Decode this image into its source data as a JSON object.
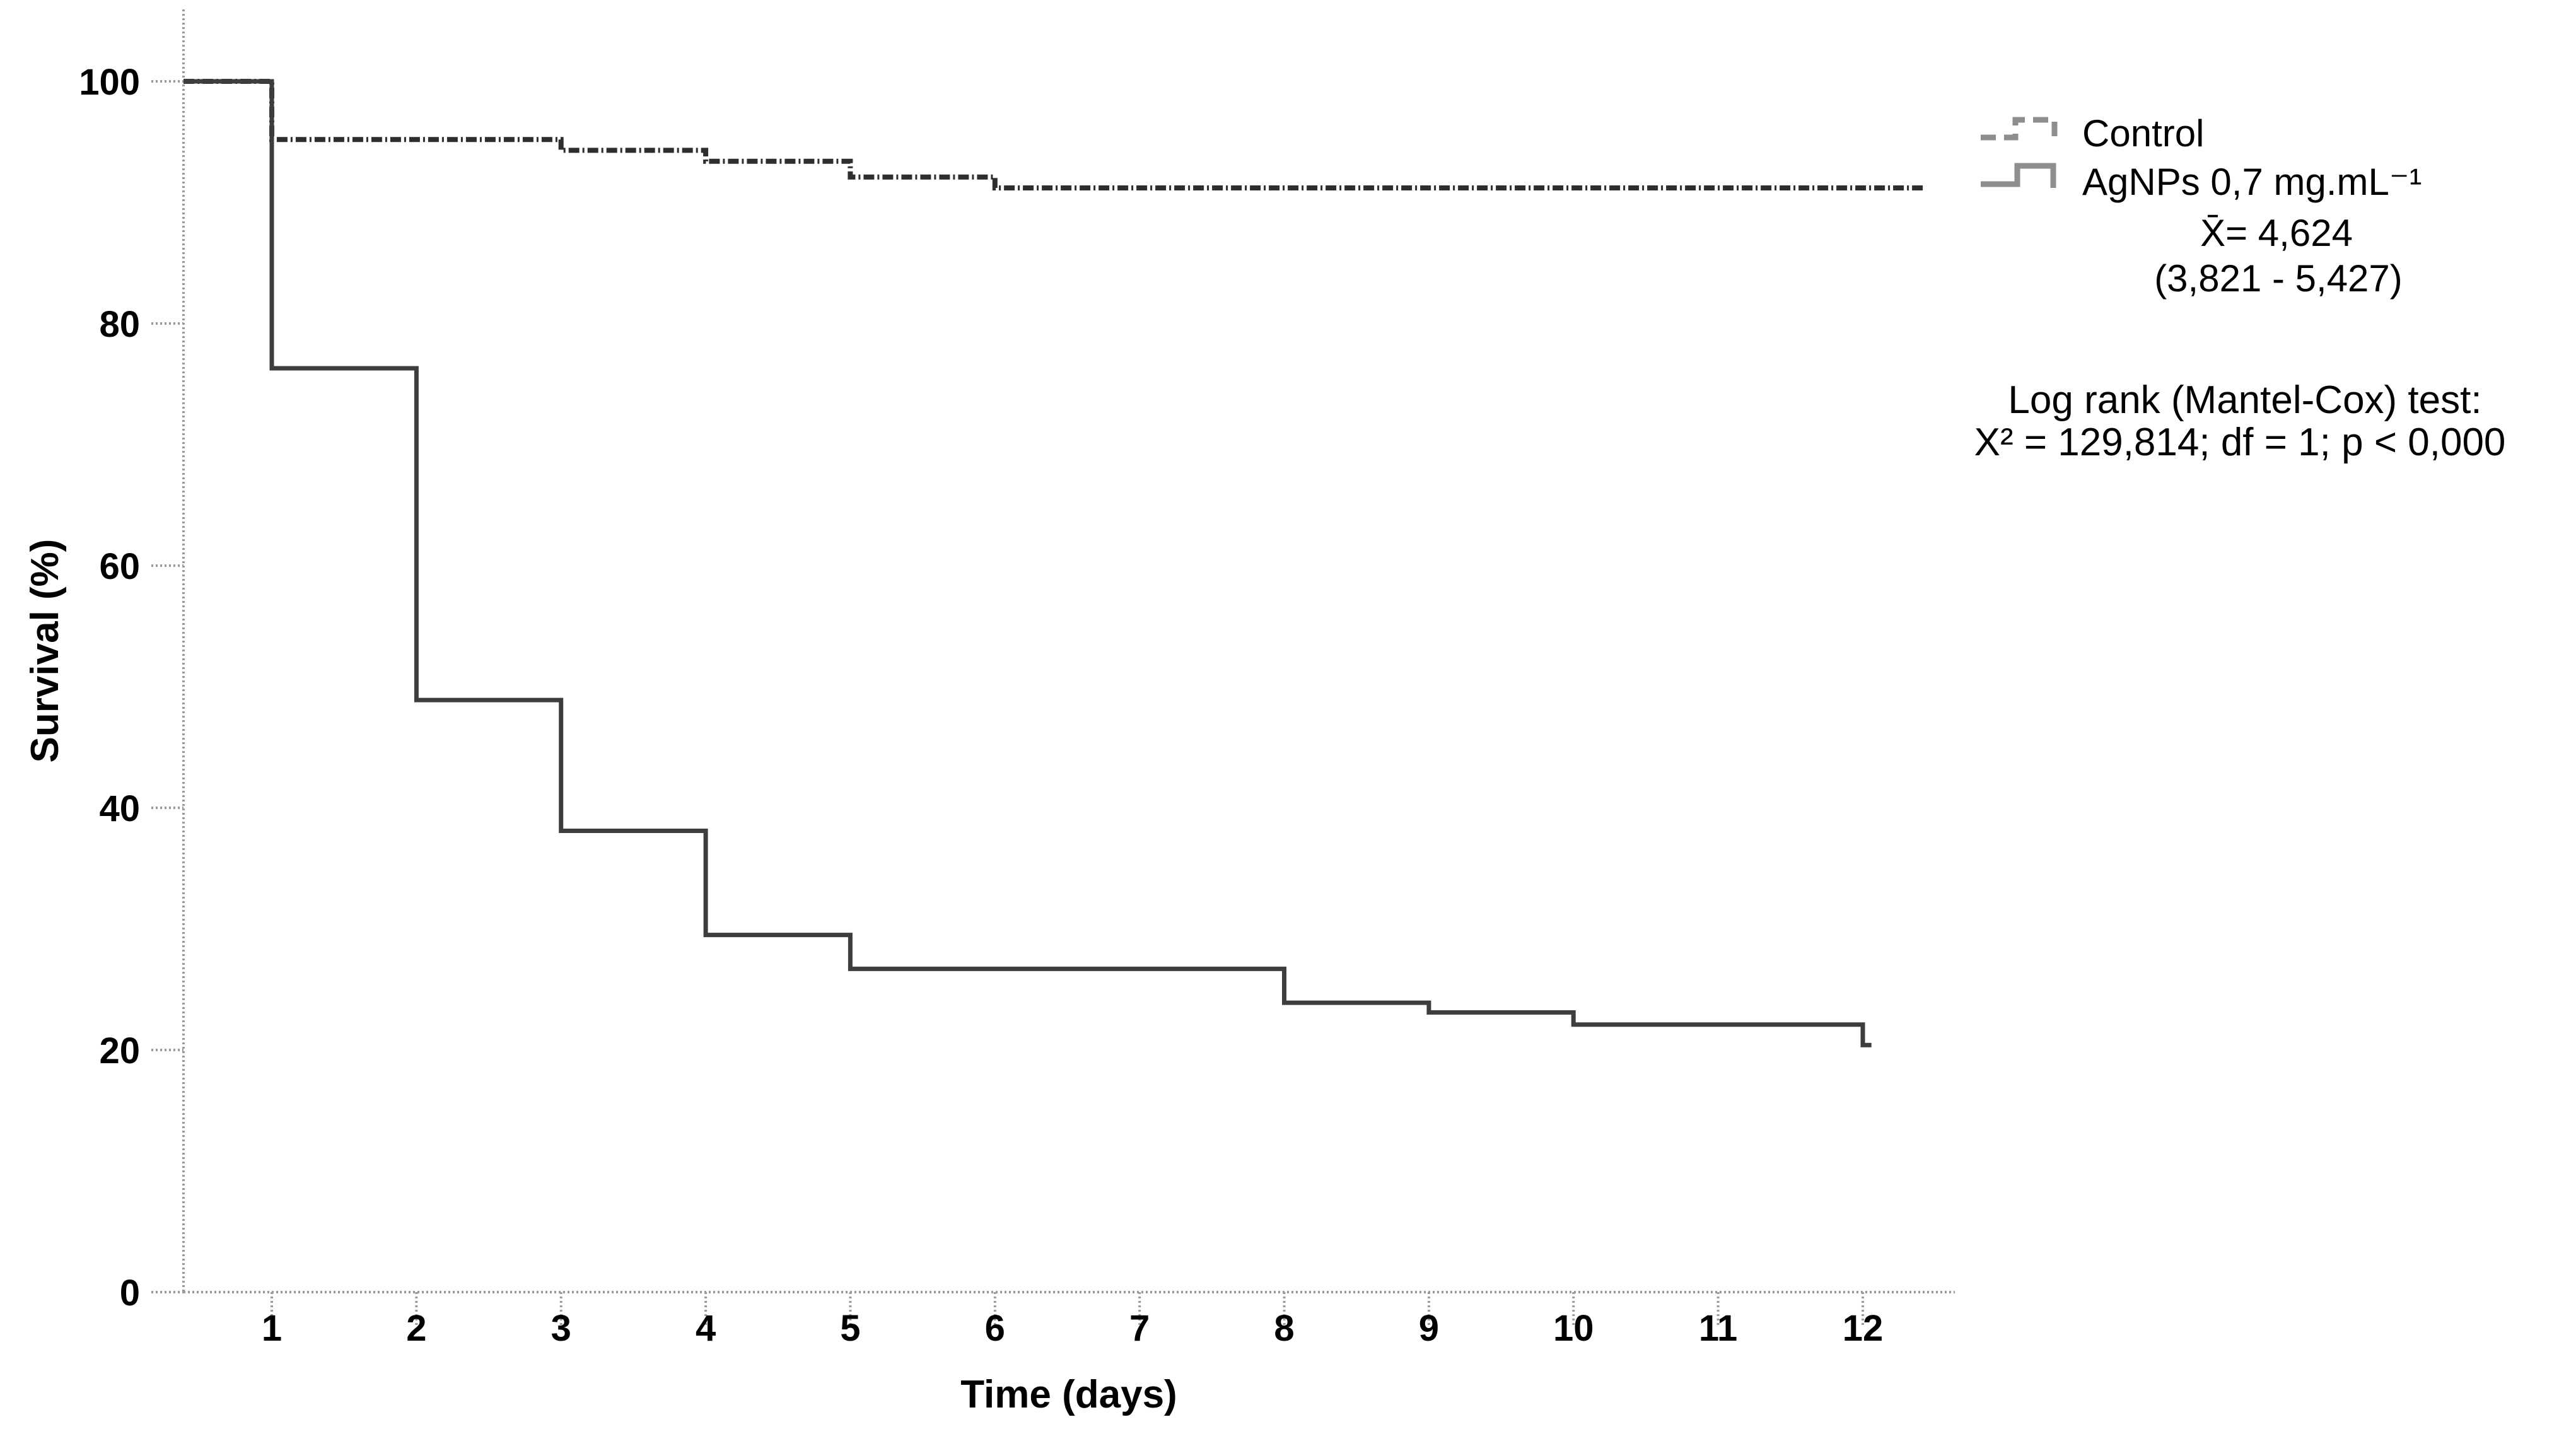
{
  "chart_data": {
    "type": "line",
    "subtype": "kaplan-meier-step",
    "title": "",
    "xlabel": "Time (days)",
    "ylabel": "Survival (%)",
    "xlim": [
      0.39,
      12.6
    ],
    "ylim": [
      0,
      100
    ],
    "x_ticks": [
      1,
      2,
      3,
      4,
      5,
      6,
      7,
      8,
      9,
      10,
      11,
      12
    ],
    "y_ticks": [
      0,
      20,
      40,
      60,
      80,
      100
    ],
    "grid": false,
    "legend_position": "top-right",
    "series": [
      {
        "name": "Control",
        "style": "dashed",
        "color": "#2e2e2e",
        "points": [
          [
            0.39,
            100
          ],
          [
            1,
            100
          ],
          [
            1,
            95.2
          ],
          [
            3,
            95.2
          ],
          [
            3,
            94.3
          ],
          [
            4,
            94.3
          ],
          [
            4,
            93.4
          ],
          [
            5,
            93.4
          ],
          [
            5,
            92.1
          ],
          [
            6,
            92.1
          ],
          [
            6,
            91.2
          ],
          [
            12.42,
            91.2
          ]
        ]
      },
      {
        "name": "AgNPs 0,7 mg.mL⁻¹",
        "style": "solid",
        "color": "#3d3d3d",
        "points": [
          [
            0.39,
            100
          ],
          [
            1,
            100
          ],
          [
            1,
            76.3
          ],
          [
            2,
            76.3
          ],
          [
            2,
            48.9
          ],
          [
            3,
            48.9
          ],
          [
            3,
            38.1
          ],
          [
            4,
            38.1
          ],
          [
            4,
            29.5
          ],
          [
            5,
            29.5
          ],
          [
            5,
            26.7
          ],
          [
            8,
            26.7
          ],
          [
            8,
            23.9
          ],
          [
            9,
            23.9
          ],
          [
            9,
            23.1
          ],
          [
            10,
            23.1
          ],
          [
            10,
            22.1
          ],
          [
            12,
            22.1
          ],
          [
            12,
            20.4
          ],
          [
            12.06,
            20.4
          ]
        ]
      }
    ],
    "annotations": [
      "X̄= 4,624",
      "(3,821 - 5,427)",
      "Log rank (Mantel-Cox) test:",
      "X² = 129,814; df = 1; p < 0,000"
    ]
  },
  "axes": {
    "x_title": "Time (days)",
    "y_title": "Survival (%)",
    "x_tick_labels": [
      "1",
      "2",
      "3",
      "4",
      "5",
      "6",
      "7",
      "8",
      "9",
      "10",
      "11",
      "12"
    ],
    "y_tick_labels": [
      "0",
      "20",
      "40",
      "60",
      "80",
      "100"
    ]
  },
  "legend": {
    "items": [
      {
        "label": "Control",
        "sample": "dashed-step-line"
      },
      {
        "label": "AgNPs 0,7 mg.mL⁻¹",
        "sample": "solid-step-line"
      }
    ]
  },
  "stats": {
    "mean": "X̄= 4,624",
    "ci": "(3,821 - 5,427)",
    "test_title": "Log rank (Mantel-Cox) test:",
    "test_result": "X² = 129,814; df = 1; p < 0,000"
  },
  "colors": {
    "background": "#ffffff",
    "axis": "#9b9b9b",
    "control_curve": "#2e2e2e",
    "agnps_curve": "#3d3d3d",
    "legend_sample": "#8e8e8e",
    "text": "#000000"
  }
}
